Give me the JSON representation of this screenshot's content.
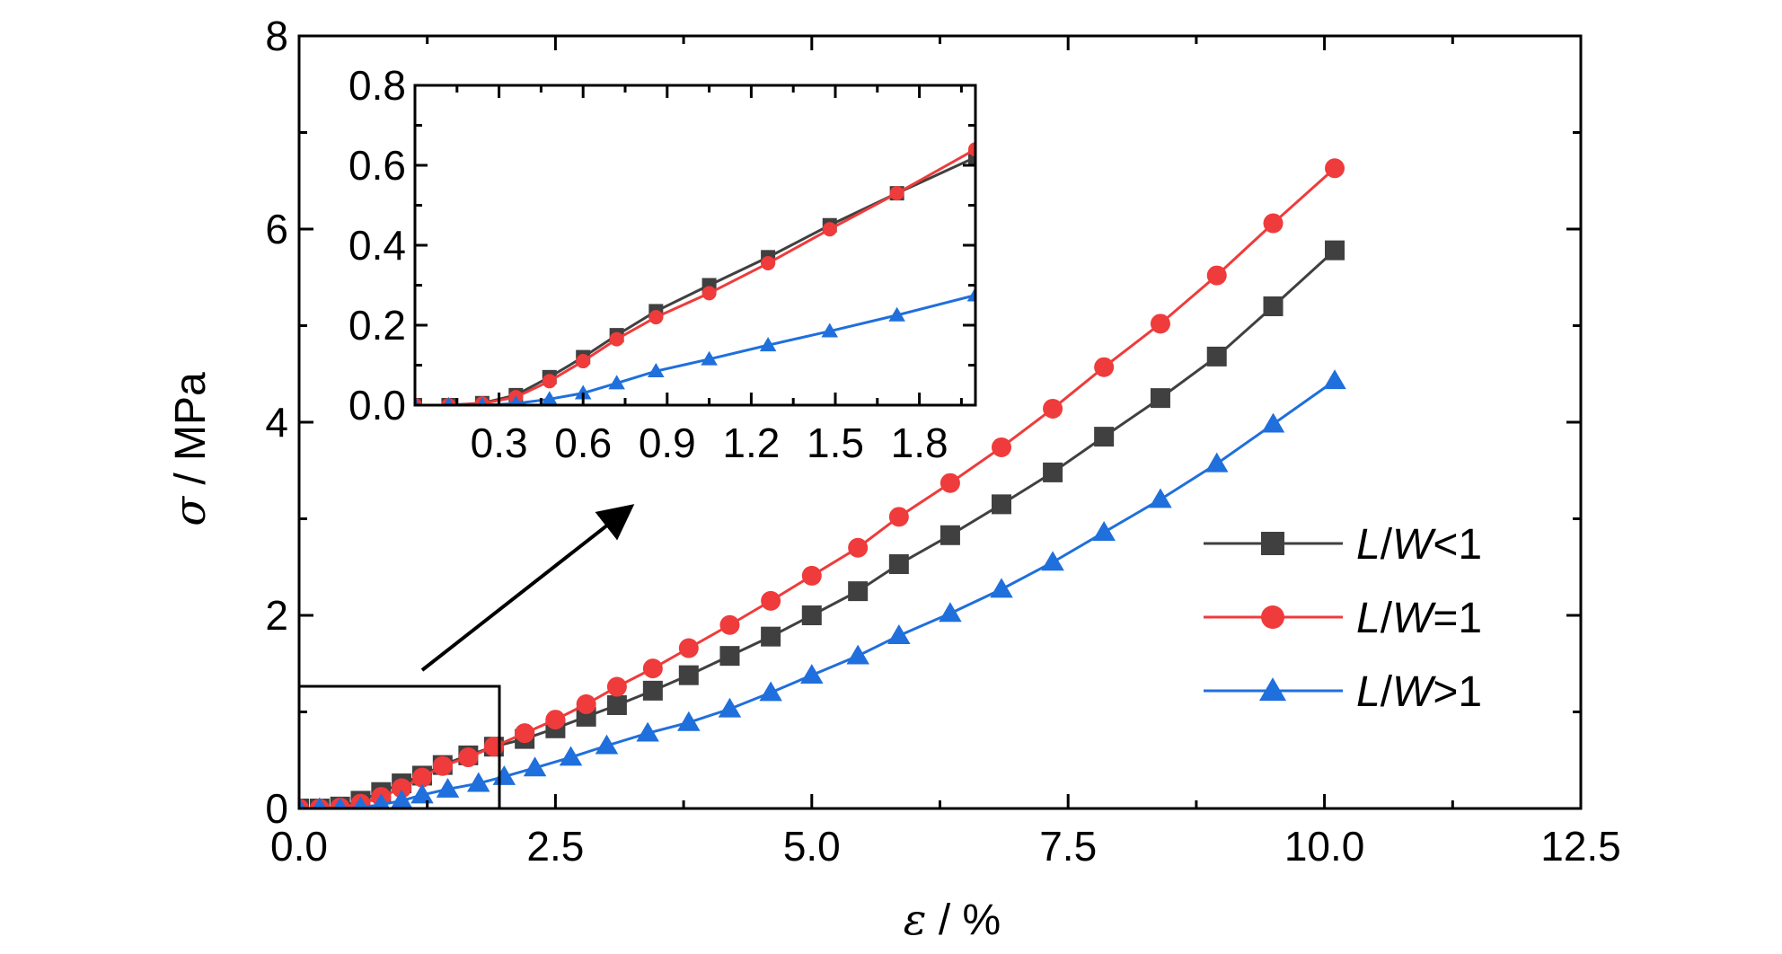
{
  "chart_data": [
    {
      "id": "main",
      "type": "line",
      "xlabel": {
        "symbol": "ε",
        "unit": " / %"
      },
      "ylabel": {
        "symbol": "σ",
        "unit": " / MPa"
      },
      "xlim": [
        0,
        12.5
      ],
      "ylim": [
        0,
        8
      ],
      "xticks": [
        0,
        2.5,
        5,
        7.5,
        10,
        12.5
      ],
      "xtick_labels": [
        "0.0",
        "2.5",
        "5.0",
        "7.5",
        "10.0",
        "12.5"
      ],
      "yticks": [
        0,
        2,
        4,
        6,
        8
      ],
      "ytick_labels": [
        "0",
        "2",
        "4",
        "6",
        "8"
      ],
      "grid": false,
      "legend_position": "right",
      "series": [
        {
          "name": "L/W<1",
          "color": "#404040",
          "marker": "square",
          "x": [
            0.0,
            0.2,
            0.4,
            0.6,
            0.8,
            1.0,
            1.2,
            1.4,
            1.65,
            1.9,
            2.2,
            2.5,
            2.8,
            3.1,
            3.45,
            3.8,
            4.2,
            4.6,
            5.0,
            5.45,
            5.85,
            6.35,
            6.85,
            7.35,
            7.85,
            8.4,
            8.95,
            9.5,
            10.1
          ],
          "y": [
            0.0,
            0.0,
            0.02,
            0.08,
            0.17,
            0.26,
            0.34,
            0.45,
            0.55,
            0.64,
            0.72,
            0.83,
            0.95,
            1.07,
            1.22,
            1.38,
            1.58,
            1.78,
            2.0,
            2.25,
            2.53,
            2.83,
            3.15,
            3.48,
            3.85,
            4.25,
            4.68,
            5.2,
            5.78
          ]
        },
        {
          "name": "L/W=1",
          "color": "#ef3b3b",
          "marker": "circle",
          "x": [
            0.0,
            0.2,
            0.4,
            0.6,
            0.8,
            1.0,
            1.2,
            1.4,
            1.65,
            1.9,
            2.2,
            2.5,
            2.8,
            3.1,
            3.45,
            3.8,
            4.2,
            4.6,
            5.0,
            5.45,
            5.85,
            6.35,
            6.85,
            7.35,
            7.85,
            8.4,
            8.95,
            9.5,
            10.1
          ],
          "y": [
            0.0,
            0.0,
            0.01,
            0.05,
            0.12,
            0.21,
            0.32,
            0.44,
            0.53,
            0.64,
            0.78,
            0.92,
            1.08,
            1.26,
            1.45,
            1.66,
            1.9,
            2.15,
            2.41,
            2.7,
            3.02,
            3.37,
            3.74,
            4.14,
            4.57,
            5.02,
            5.52,
            6.06,
            6.63
          ]
        },
        {
          "name": "L/W>1",
          "color": "#1f6fdc",
          "marker": "triangle",
          "x": [
            0.0,
            0.2,
            0.4,
            0.6,
            0.8,
            1.0,
            1.2,
            1.45,
            1.75,
            2.0,
            2.3,
            2.65,
            3.0,
            3.4,
            3.8,
            4.2,
            4.6,
            5.0,
            5.45,
            5.85,
            6.35,
            6.85,
            7.35,
            7.85,
            8.4,
            8.95,
            9.5,
            10.1
          ],
          "y": [
            0.0,
            0.0,
            0.0,
            0.01,
            0.04,
            0.08,
            0.14,
            0.2,
            0.26,
            0.33,
            0.42,
            0.53,
            0.65,
            0.78,
            0.89,
            1.03,
            1.2,
            1.38,
            1.58,
            1.79,
            2.02,
            2.27,
            2.55,
            2.86,
            3.2,
            3.57,
            3.98,
            4.43
          ]
        }
      ]
    },
    {
      "id": "inset",
      "type": "line",
      "xlim": [
        0,
        2.0
      ],
      "ylim": [
        0,
        0.8
      ],
      "xticks": [
        0.3,
        0.6,
        0.9,
        1.2,
        1.5,
        1.8
      ],
      "xtick_labels": [
        "0.3",
        "0.6",
        "0.9",
        "1.2",
        "1.5",
        "1.8"
      ],
      "yticks": [
        0,
        0.2,
        0.4,
        0.6,
        0.8
      ],
      "ytick_labels": [
        "0.0",
        "0.2",
        "0.4",
        "0.6",
        "0.8"
      ],
      "series": [
        {
          "name": "L/W<1",
          "color": "#404040",
          "marker": "square",
          "x": [
            0.0,
            0.12,
            0.24,
            0.36,
            0.48,
            0.6,
            0.72,
            0.86,
            1.05,
            1.26,
            1.48,
            1.72,
            2.0
          ],
          "y": [
            0.0,
            0.0,
            0.005,
            0.025,
            0.07,
            0.12,
            0.175,
            0.235,
            0.3,
            0.37,
            0.45,
            0.53,
            0.62
          ]
        },
        {
          "name": "L/W=1",
          "color": "#ef3b3b",
          "marker": "circle",
          "x": [
            0.0,
            0.12,
            0.24,
            0.36,
            0.48,
            0.6,
            0.72,
            0.86,
            1.05,
            1.26,
            1.48,
            1.72,
            2.0
          ],
          "y": [
            0.0,
            0.0,
            0.004,
            0.02,
            0.06,
            0.11,
            0.165,
            0.22,
            0.28,
            0.355,
            0.44,
            0.53,
            0.64
          ]
        },
        {
          "name": "L/W>1",
          "color": "#1f6fdc",
          "marker": "triangle",
          "x": [
            0.0,
            0.12,
            0.24,
            0.36,
            0.48,
            0.6,
            0.72,
            0.86,
            1.05,
            1.26,
            1.48,
            1.72,
            2.0
          ],
          "y": [
            0.0,
            0.0,
            0.0,
            0.004,
            0.015,
            0.03,
            0.055,
            0.085,
            0.115,
            0.15,
            0.185,
            0.225,
            0.275
          ]
        }
      ]
    }
  ]
}
